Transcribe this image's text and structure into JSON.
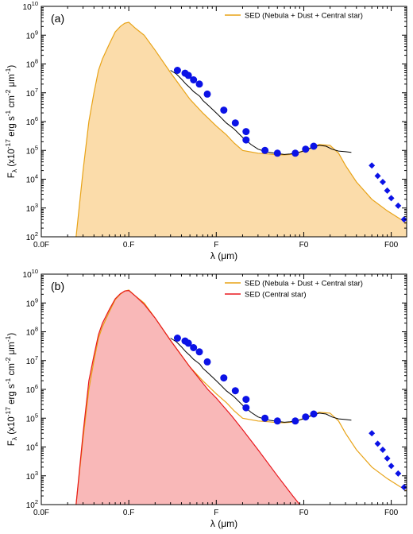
{
  "chart_data": [
    {
      "type": "line",
      "panel_label": "(a)",
      "xlabel": "λ (μm)",
      "ylabel": "Fλ (x10-17 erg s-1 cm-2 μm-1)",
      "ylabel_parts": {
        "base": "F",
        "sub": "λ",
        "pre": " (x10",
        "sup1": "-17",
        "mid1": " erg s",
        "sup2": "-1",
        "mid2": " cm",
        "sup3": "-2",
        "mid3": " μm",
        "sup4": "-1",
        "post": ")"
      },
      "xscale": "log",
      "yscale": "log",
      "xlim": [
        0.01,
        150
      ],
      "ylim": [
        100,
        10000000000
      ],
      "x_tick_labels": [
        "0.0F",
        "0.F",
        "F",
        "F0",
        "F00"
      ],
      "y_tick_labels": [
        {
          "base": "10",
          "exp": "2"
        },
        {
          "base": "10",
          "exp": "3"
        },
        {
          "base": "10",
          "exp": "4"
        },
        {
          "base": "10",
          "exp": "5"
        },
        {
          "base": "10",
          "exp": "6"
        },
        {
          "base": "10",
          "exp": "7"
        },
        {
          "base": "10",
          "exp": "8"
        },
        {
          "base": "10",
          "exp": "9"
        },
        {
          "base": "10",
          "exp": "10"
        }
      ],
      "legend_position": "top-right",
      "legend": [
        "SED (Nebula + Dust + Central star)"
      ],
      "colors": {
        "sed_total_line": "#e8a317",
        "sed_total_fill": "#fbdcaa",
        "observed": "#000000",
        "photometry": "#0b12e6"
      },
      "series": [
        {
          "name": "SED (Nebula + Dust + Central star)",
          "x": [
            0.025,
            0.03,
            0.035,
            0.04,
            0.045,
            0.05,
            0.06,
            0.07,
            0.08,
            0.09,
            0.1,
            0.12,
            0.15,
            0.2,
            0.3,
            0.4,
            0.5,
            0.7,
            1.0,
            1.3,
            1.6,
            2.0,
            3.0,
            4.0,
            5.0,
            6.0,
            7.0,
            8.0,
            10.0,
            15.0,
            20.0,
            25.0,
            30.0,
            40.0,
            60.0,
            90.0,
            150.0
          ],
          "y": [
            100,
            20000,
            1000000,
            10000000,
            60000000,
            150000000,
            500000000,
            1300000000,
            2000000000,
            2600000000,
            2800000000,
            1700000000,
            1000000000,
            300000000,
            50000000,
            15000000,
            6000000,
            2000000,
            700000,
            350000,
            180000,
            100000,
            80000,
            75000,
            70000,
            70000,
            72000,
            75000,
            100000,
            160000,
            150000,
            80000,
            30000,
            8000,
            2000,
            800,
            300
          ]
        },
        {
          "name": "observed",
          "x": [
            0.3,
            0.35,
            0.4,
            0.45,
            0.5,
            0.55,
            0.6,
            0.65,
            0.7,
            0.75,
            0.8,
            0.85,
            0.9,
            1.0,
            1.1,
            1.3,
            1.6,
            2.0,
            2.5,
            3.0,
            3.5,
            4.0,
            5.0,
            6.0,
            7.0,
            8.0,
            10.0,
            12.0,
            15.0,
            18.0,
            21.0,
            25.0,
            30.0,
            35.0
          ],
          "y": [
            60000000,
            45000000,
            30000000,
            20000000,
            15000000,
            11000000,
            9000000,
            7500000,
            5500000,
            4500000,
            3800000,
            3200000,
            2700000,
            2000000,
            1500000,
            900000,
            550000,
            280000,
            160000,
            110000,
            95000,
            85000,
            78000,
            72000,
            75000,
            80000,
            95000,
            120000,
            150000,
            140000,
            110000,
            95000,
            90000,
            85000
          ]
        },
        {
          "name": "photometry",
          "x": [
            0.36,
            0.44,
            0.48,
            0.55,
            0.64,
            0.79,
            1.22,
            1.65,
            2.19,
            2.19,
            3.6,
            5.0,
            8.0,
            10.5,
            13.0,
            60.0,
            70.0,
            80.0,
            90.0,
            100.0,
            120.0,
            140.0
          ],
          "y": [
            60000000,
            48000000,
            40000000,
            28000000,
            20000000,
            9000000,
            2500000,
            900000,
            450000,
            230000,
            100000,
            80000,
            80000,
            110000,
            140000,
            30000,
            13000,
            8000,
            4000,
            2200,
            1200,
            400
          ]
        }
      ]
    },
    {
      "type": "line",
      "panel_label": "(b)",
      "xlabel": "λ (μm)",
      "ylabel": "Fλ (x10-17 erg s-1 cm-2 μm-1)",
      "ylabel_parts": {
        "base": "F",
        "sub": "λ",
        "pre": " (x10",
        "sup1": "-17",
        "mid1": " erg s",
        "sup2": "-1",
        "mid2": " cm",
        "sup3": "-2",
        "mid3": " μm",
        "sup4": "-1",
        "post": ")"
      },
      "xscale": "log",
      "yscale": "log",
      "xlim": [
        0.01,
        150
      ],
      "ylim": [
        100,
        10000000000
      ],
      "x_tick_labels": [
        "0.0F",
        "0.F",
        "F",
        "F0",
        "F00"
      ],
      "y_tick_labels": [
        {
          "base": "10",
          "exp": "2"
        },
        {
          "base": "10",
          "exp": "3"
        },
        {
          "base": "10",
          "exp": "4"
        },
        {
          "base": "10",
          "exp": "5"
        },
        {
          "base": "10",
          "exp": "6"
        },
        {
          "base": "10",
          "exp": "7"
        },
        {
          "base": "10",
          "exp": "8"
        },
        {
          "base": "10",
          "exp": "9"
        },
        {
          "base": "10",
          "exp": "10"
        }
      ],
      "legend_position": "top-right",
      "legend": [
        "SED (Nebula + Dust + Central star)",
        "SED (Central star)"
      ],
      "colors": {
        "sed_total_line": "#e8a317",
        "sed_star_line": "#e8181e",
        "sed_star_fill": "#f9b8b8",
        "observed": "#000000",
        "photometry": "#0b12e6"
      },
      "series": [
        {
          "name": "SED (Nebula + Dust + Central star)",
          "x": [
            0.025,
            0.03,
            0.035,
            0.04,
            0.045,
            0.05,
            0.06,
            0.07,
            0.08,
            0.09,
            0.1,
            0.12,
            0.15,
            0.2,
            0.3,
            0.4,
            0.5,
            0.7,
            1.0,
            1.3,
            1.6,
            2.0,
            3.0,
            4.0,
            5.0,
            6.0,
            7.0,
            8.0,
            10.0,
            15.0,
            20.0,
            25.0,
            30.0,
            40.0,
            60.0,
            90.0,
            150.0
          ],
          "y": [
            100,
            20000,
            1000000,
            10000000,
            60000000,
            150000000,
            500000000,
            1300000000,
            2000000000,
            2600000000,
            2800000000,
            1700000000,
            1000000000,
            300000000,
            50000000,
            15000000,
            6000000,
            2000000,
            700000,
            350000,
            180000,
            100000,
            80000,
            75000,
            70000,
            70000,
            72000,
            75000,
            100000,
            160000,
            150000,
            80000,
            30000,
            8000,
            2000,
            800,
            300
          ]
        },
        {
          "name": "SED (Central star)",
          "x": [
            0.025,
            0.03,
            0.035,
            0.04,
            0.045,
            0.05,
            0.06,
            0.07,
            0.08,
            0.09,
            0.1,
            0.12,
            0.15,
            0.2,
            0.3,
            0.5,
            0.8,
            1.0,
            1.5,
            2.0,
            3.0,
            5.0,
            7.5,
            9.0
          ],
          "y": [
            100,
            30000,
            2000000,
            15000000,
            80000000,
            200000000,
            600000000,
            1400000000,
            2100000000,
            2600000000,
            2700000000,
            1700000000,
            900000000,
            300000000,
            50000000,
            6000000,
            1000000,
            500000,
            120000,
            40000,
            8000,
            1000,
            200,
            100
          ]
        },
        {
          "name": "observed",
          "x": [
            0.3,
            0.35,
            0.4,
            0.45,
            0.5,
            0.55,
            0.6,
            0.65,
            0.7,
            0.75,
            0.8,
            0.85,
            0.9,
            1.0,
            1.1,
            1.3,
            1.6,
            2.0,
            2.5,
            3.0,
            3.5,
            4.0,
            5.0,
            6.0,
            7.0,
            8.0,
            10.0,
            12.0,
            15.0,
            18.0,
            21.0,
            25.0,
            30.0,
            35.0
          ],
          "y": [
            60000000,
            45000000,
            30000000,
            20000000,
            15000000,
            11000000,
            9000000,
            7500000,
            5500000,
            4500000,
            3800000,
            3200000,
            2700000,
            2000000,
            1500000,
            900000,
            550000,
            280000,
            160000,
            110000,
            95000,
            85000,
            78000,
            72000,
            75000,
            80000,
            95000,
            120000,
            150000,
            140000,
            110000,
            95000,
            90000,
            85000
          ]
        },
        {
          "name": "photometry",
          "x": [
            0.36,
            0.44,
            0.48,
            0.55,
            0.64,
            0.79,
            1.22,
            1.65,
            2.19,
            2.19,
            3.6,
            5.0,
            8.0,
            10.5,
            13.0,
            60.0,
            70.0,
            80.0,
            90.0,
            100.0,
            120.0,
            140.0
          ],
          "y": [
            60000000,
            48000000,
            40000000,
            28000000,
            20000000,
            9000000,
            2500000,
            900000,
            450000,
            230000,
            100000,
            80000,
            80000,
            110000,
            140000,
            30000,
            13000,
            8000,
            4000,
            2200,
            1200,
            400
          ]
        }
      ]
    }
  ]
}
